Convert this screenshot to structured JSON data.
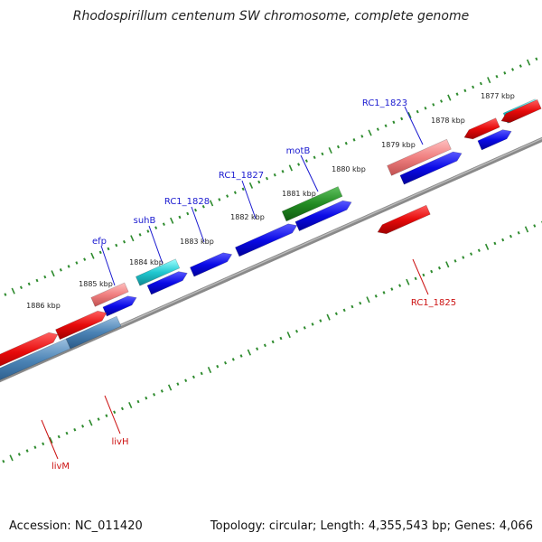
{
  "title": "Rhodospirillum centenum SW chromosome, complete genome",
  "footer": {
    "accession": "Accession: NC_011420",
    "summary": "Topology: circular; Length: 4,355,543 bp; Genes: 4,066"
  },
  "kbp_labels": [
    "1877 kbp",
    "1878 kbp",
    "1879 kbp",
    "1880 kbp",
    "1881 kbp",
    "1882 kbp",
    "1883 kbp",
    "1884 kbp",
    "1885 kbp",
    "1886 kbp"
  ],
  "gene_labels": [
    {
      "name": "RC1_1823",
      "color": "#1a1ad0"
    },
    {
      "name": "motB",
      "color": "#1a1ad0"
    },
    {
      "name": "RC1_1827",
      "color": "#1a1ad0"
    },
    {
      "name": "RC1_1828",
      "color": "#1a1ad0"
    },
    {
      "name": "suhB",
      "color": "#1a1ad0"
    },
    {
      "name": "efp",
      "color": "#1a1ad0"
    },
    {
      "name": "RC1_1825",
      "color": "#cc1111"
    },
    {
      "name": "livH",
      "color": "#cc1111"
    },
    {
      "name": "livM",
      "color": "#cc1111"
    }
  ],
  "colors": {
    "backbone": "#888888",
    "tick": "#2e8b2e",
    "blue": "#0a0ae6",
    "red": "#e60a0a",
    "pink": "#f08080",
    "cyan": "#20c8d0",
    "green": "#228b22",
    "steel": "#4a82b4"
  }
}
